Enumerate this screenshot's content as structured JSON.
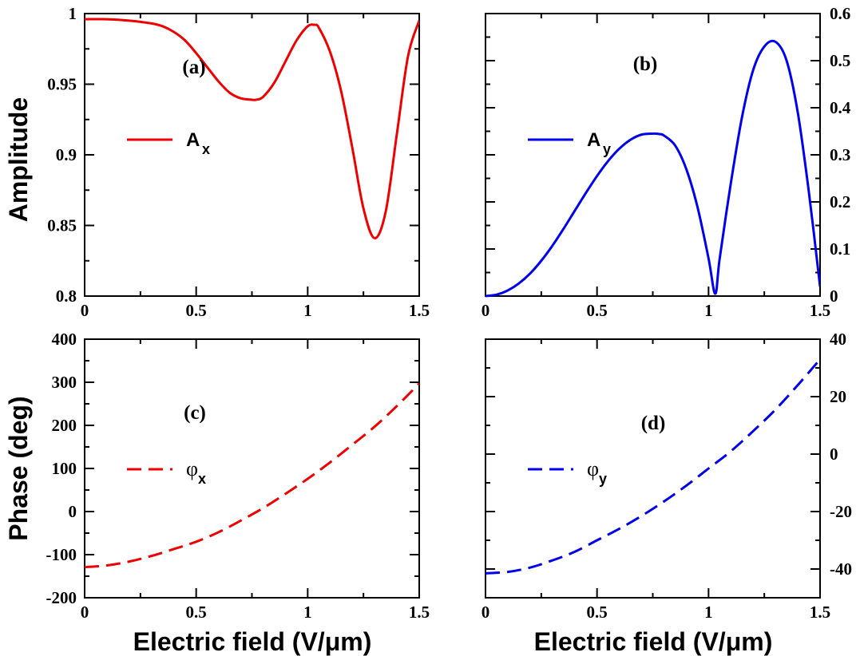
{
  "axis_titles": {
    "amplitude": "Amplitude",
    "phase": "Phase (deg)",
    "xlabel_left": "Electric field (V/μm)",
    "xlabel_right": "Electric field (V/μm)"
  },
  "chart_data": [
    {
      "id": "a",
      "type": "line",
      "panel_label": "(a)",
      "xlim": [
        0,
        1.5
      ],
      "ylim": [
        0.8,
        1.0
      ],
      "x_ticks": [
        "0",
        "0.5",
        "1",
        "1.5"
      ],
      "y_ticks": [
        "0.8",
        "0.85",
        "0.9",
        "0.95",
        "1"
      ],
      "y_axis_side": "left",
      "legend": {
        "symbol": "A",
        "sub": "x",
        "position": "center-left"
      },
      "series": [
        {
          "name": "A_x",
          "color": "#ee0000",
          "dash": "solid",
          "x": [
            0,
            0.1,
            0.2,
            0.3,
            0.35,
            0.4,
            0.45,
            0.5,
            0.55,
            0.6,
            0.65,
            0.7,
            0.75,
            0.77,
            0.8,
            0.85,
            0.9,
            0.95,
            1.0,
            1.03,
            1.05,
            1.1,
            1.15,
            1.2,
            1.25,
            1.3,
            1.35,
            1.4,
            1.45,
            1.5
          ],
          "y": [
            0.996,
            0.996,
            0.995,
            0.993,
            0.991,
            0.987,
            0.981,
            0.972,
            0.962,
            0.952,
            0.944,
            0.94,
            0.939,
            0.939,
            0.941,
            0.951,
            0.966,
            0.981,
            0.991,
            0.992,
            0.99,
            0.973,
            0.945,
            0.905,
            0.862,
            0.841,
            0.86,
            0.915,
            0.97,
            0.995
          ]
        }
      ]
    },
    {
      "id": "b",
      "type": "line",
      "panel_label": "(b)",
      "xlim": [
        0,
        1.5
      ],
      "ylim": [
        0,
        0.6
      ],
      "x_ticks": [
        "0",
        "0.5",
        "1",
        "1.5"
      ],
      "y_ticks": [
        "0",
        "0.1",
        "0.2",
        "0.3",
        "0.4",
        "0.5",
        "0.6"
      ],
      "y_axis_side": "right",
      "legend": {
        "symbol": "A",
        "sub": "y",
        "position": "center-left"
      },
      "series": [
        {
          "name": "A_y",
          "color": "#0000ee",
          "dash": "solid",
          "x": [
            0,
            0.05,
            0.1,
            0.15,
            0.2,
            0.25,
            0.3,
            0.35,
            0.4,
            0.45,
            0.5,
            0.55,
            0.6,
            0.65,
            0.7,
            0.75,
            0.78,
            0.8,
            0.85,
            0.9,
            0.95,
            1.0,
            1.03,
            1.05,
            1.1,
            1.15,
            1.2,
            1.25,
            1.3,
            1.35,
            1.4,
            1.45,
            1.5
          ],
          "y": [
            0.0,
            0.003,
            0.012,
            0.027,
            0.048,
            0.075,
            0.107,
            0.143,
            0.181,
            0.219,
            0.255,
            0.287,
            0.313,
            0.332,
            0.343,
            0.345,
            0.344,
            0.341,
            0.32,
            0.27,
            0.19,
            0.08,
            0.005,
            0.08,
            0.24,
            0.38,
            0.48,
            0.53,
            0.54,
            0.5,
            0.39,
            0.22,
            0.02
          ]
        }
      ]
    },
    {
      "id": "c",
      "type": "line",
      "panel_label": "(c)",
      "xlim": [
        0,
        1.5
      ],
      "ylim": [
        -200,
        400
      ],
      "x_ticks": [
        "0",
        "0.5",
        "1",
        "1.5"
      ],
      "y_ticks": [
        "-200",
        "-100",
        "0",
        "100",
        "200",
        "300",
        "400"
      ],
      "y_axis_side": "left",
      "legend": {
        "symbol": "φ",
        "sub": "x",
        "position": "center-left"
      },
      "series": [
        {
          "name": "phi_x",
          "color": "#ee0000",
          "dash": "dashed",
          "x": [
            0,
            0.1,
            0.2,
            0.3,
            0.4,
            0.5,
            0.6,
            0.7,
            0.8,
            0.9,
            1.0,
            1.1,
            1.2,
            1.3,
            1.4,
            1.5
          ],
          "y": [
            -129,
            -125,
            -116,
            -103,
            -87,
            -70,
            -48,
            -21,
            8,
            41,
            76,
            114,
            155,
            197,
            245,
            297
          ]
        }
      ]
    },
    {
      "id": "d",
      "type": "line",
      "panel_label": "(d)",
      "xlim": [
        0,
        1.5
      ],
      "ylim": [
        -50,
        40
      ],
      "x_ticks": [
        "0",
        "0.5",
        "1",
        "1.5"
      ],
      "y_ticks": [
        "-40",
        "-20",
        "0",
        "20",
        "40"
      ],
      "y_axis_side": "right",
      "legend": {
        "symbol": "φ",
        "sub": "y",
        "position": "center-left"
      },
      "series": [
        {
          "name": "phi_y",
          "color": "#0000ee",
          "dash": "dashed",
          "x": [
            0,
            0.1,
            0.2,
            0.3,
            0.4,
            0.5,
            0.6,
            0.7,
            0.8,
            0.9,
            1.0,
            1.1,
            1.2,
            1.3,
            1.4,
            1.5
          ],
          "y": [
            -41.5,
            -41,
            -39.5,
            -37,
            -34,
            -30,
            -26,
            -21.5,
            -16.5,
            -11,
            -5,
            1,
            8,
            15.5,
            24,
            33
          ]
        }
      ]
    }
  ]
}
